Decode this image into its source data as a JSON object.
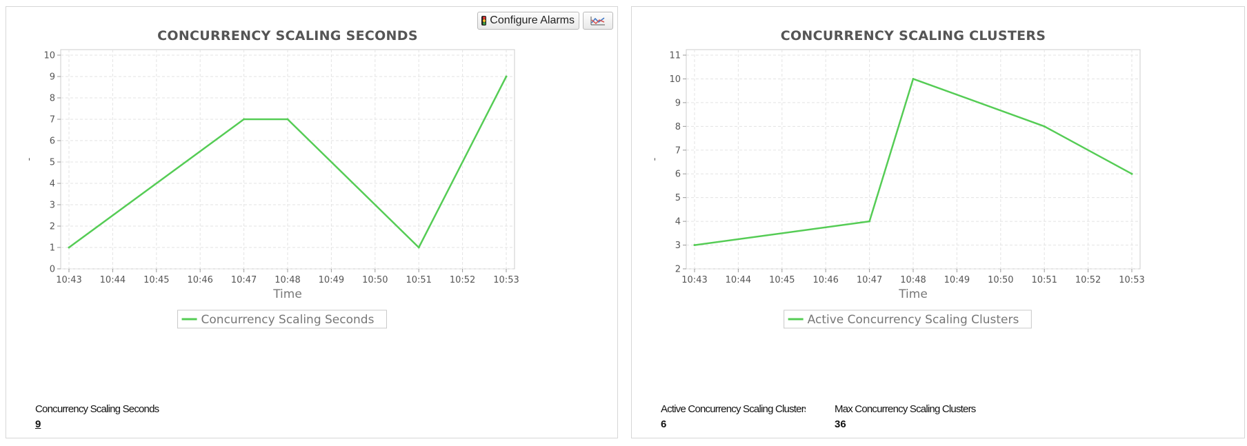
{
  "colors": {
    "series": "#55cc55",
    "grid": "#e3e3e3",
    "axis": "#cccccc"
  },
  "toolbar": {
    "configure_alarms_label": "Configure Alarms",
    "alarm_icon": "traffic-light-icon",
    "chart_type_icon": "line-chart-icon"
  },
  "chart_data": [
    {
      "type": "line",
      "title": "CONCURRENCY SCALING SECONDS",
      "xlabel": "Time",
      "ylabel": "-",
      "x": [
        "10:43",
        "10:44",
        "10:45",
        "10:46",
        "10:47",
        "10:48",
        "10:49",
        "10:50",
        "10:51",
        "10:52",
        "10:53"
      ],
      "ylim": [
        0,
        10
      ],
      "yticks": [
        0,
        1,
        2,
        3,
        4,
        5,
        6,
        7,
        8,
        9,
        10
      ],
      "grid": true,
      "legend_position": "bottom",
      "series": [
        {
          "name": "Concurrency Scaling Seconds",
          "points": [
            [
              "10:43",
              1
            ],
            [
              "10:47",
              7
            ],
            [
              "10:48",
              7
            ],
            [
              "10:51",
              1
            ],
            [
              "10:53",
              9
            ]
          ]
        }
      ]
    },
    {
      "type": "line",
      "title": "CONCURRENCY SCALING CLUSTERS",
      "xlabel": "Time",
      "ylabel": "-",
      "x": [
        "10:43",
        "10:44",
        "10:45",
        "10:46",
        "10:47",
        "10:48",
        "10:49",
        "10:50",
        "10:51",
        "10:52",
        "10:53"
      ],
      "ylim": [
        2,
        11
      ],
      "yticks": [
        2,
        3,
        4,
        5,
        6,
        7,
        8,
        9,
        10,
        11
      ],
      "grid": true,
      "legend_position": "bottom",
      "series": [
        {
          "name": "Active Concurrency Scaling Clusters",
          "points": [
            [
              "10:43",
              3
            ],
            [
              "10:47",
              4
            ],
            [
              "10:48",
              10
            ],
            [
              "10:51",
              8
            ],
            [
              "10:53",
              6
            ]
          ]
        }
      ]
    }
  ],
  "stats_left": [
    {
      "label": "Concurrency Scaling Seconds",
      "value": "9"
    }
  ],
  "stats_right": [
    {
      "label": "Active Concurrency Scaling Clusters",
      "value": "6"
    },
    {
      "label": "Max Concurrency Scaling Clusters",
      "value": "36"
    }
  ]
}
